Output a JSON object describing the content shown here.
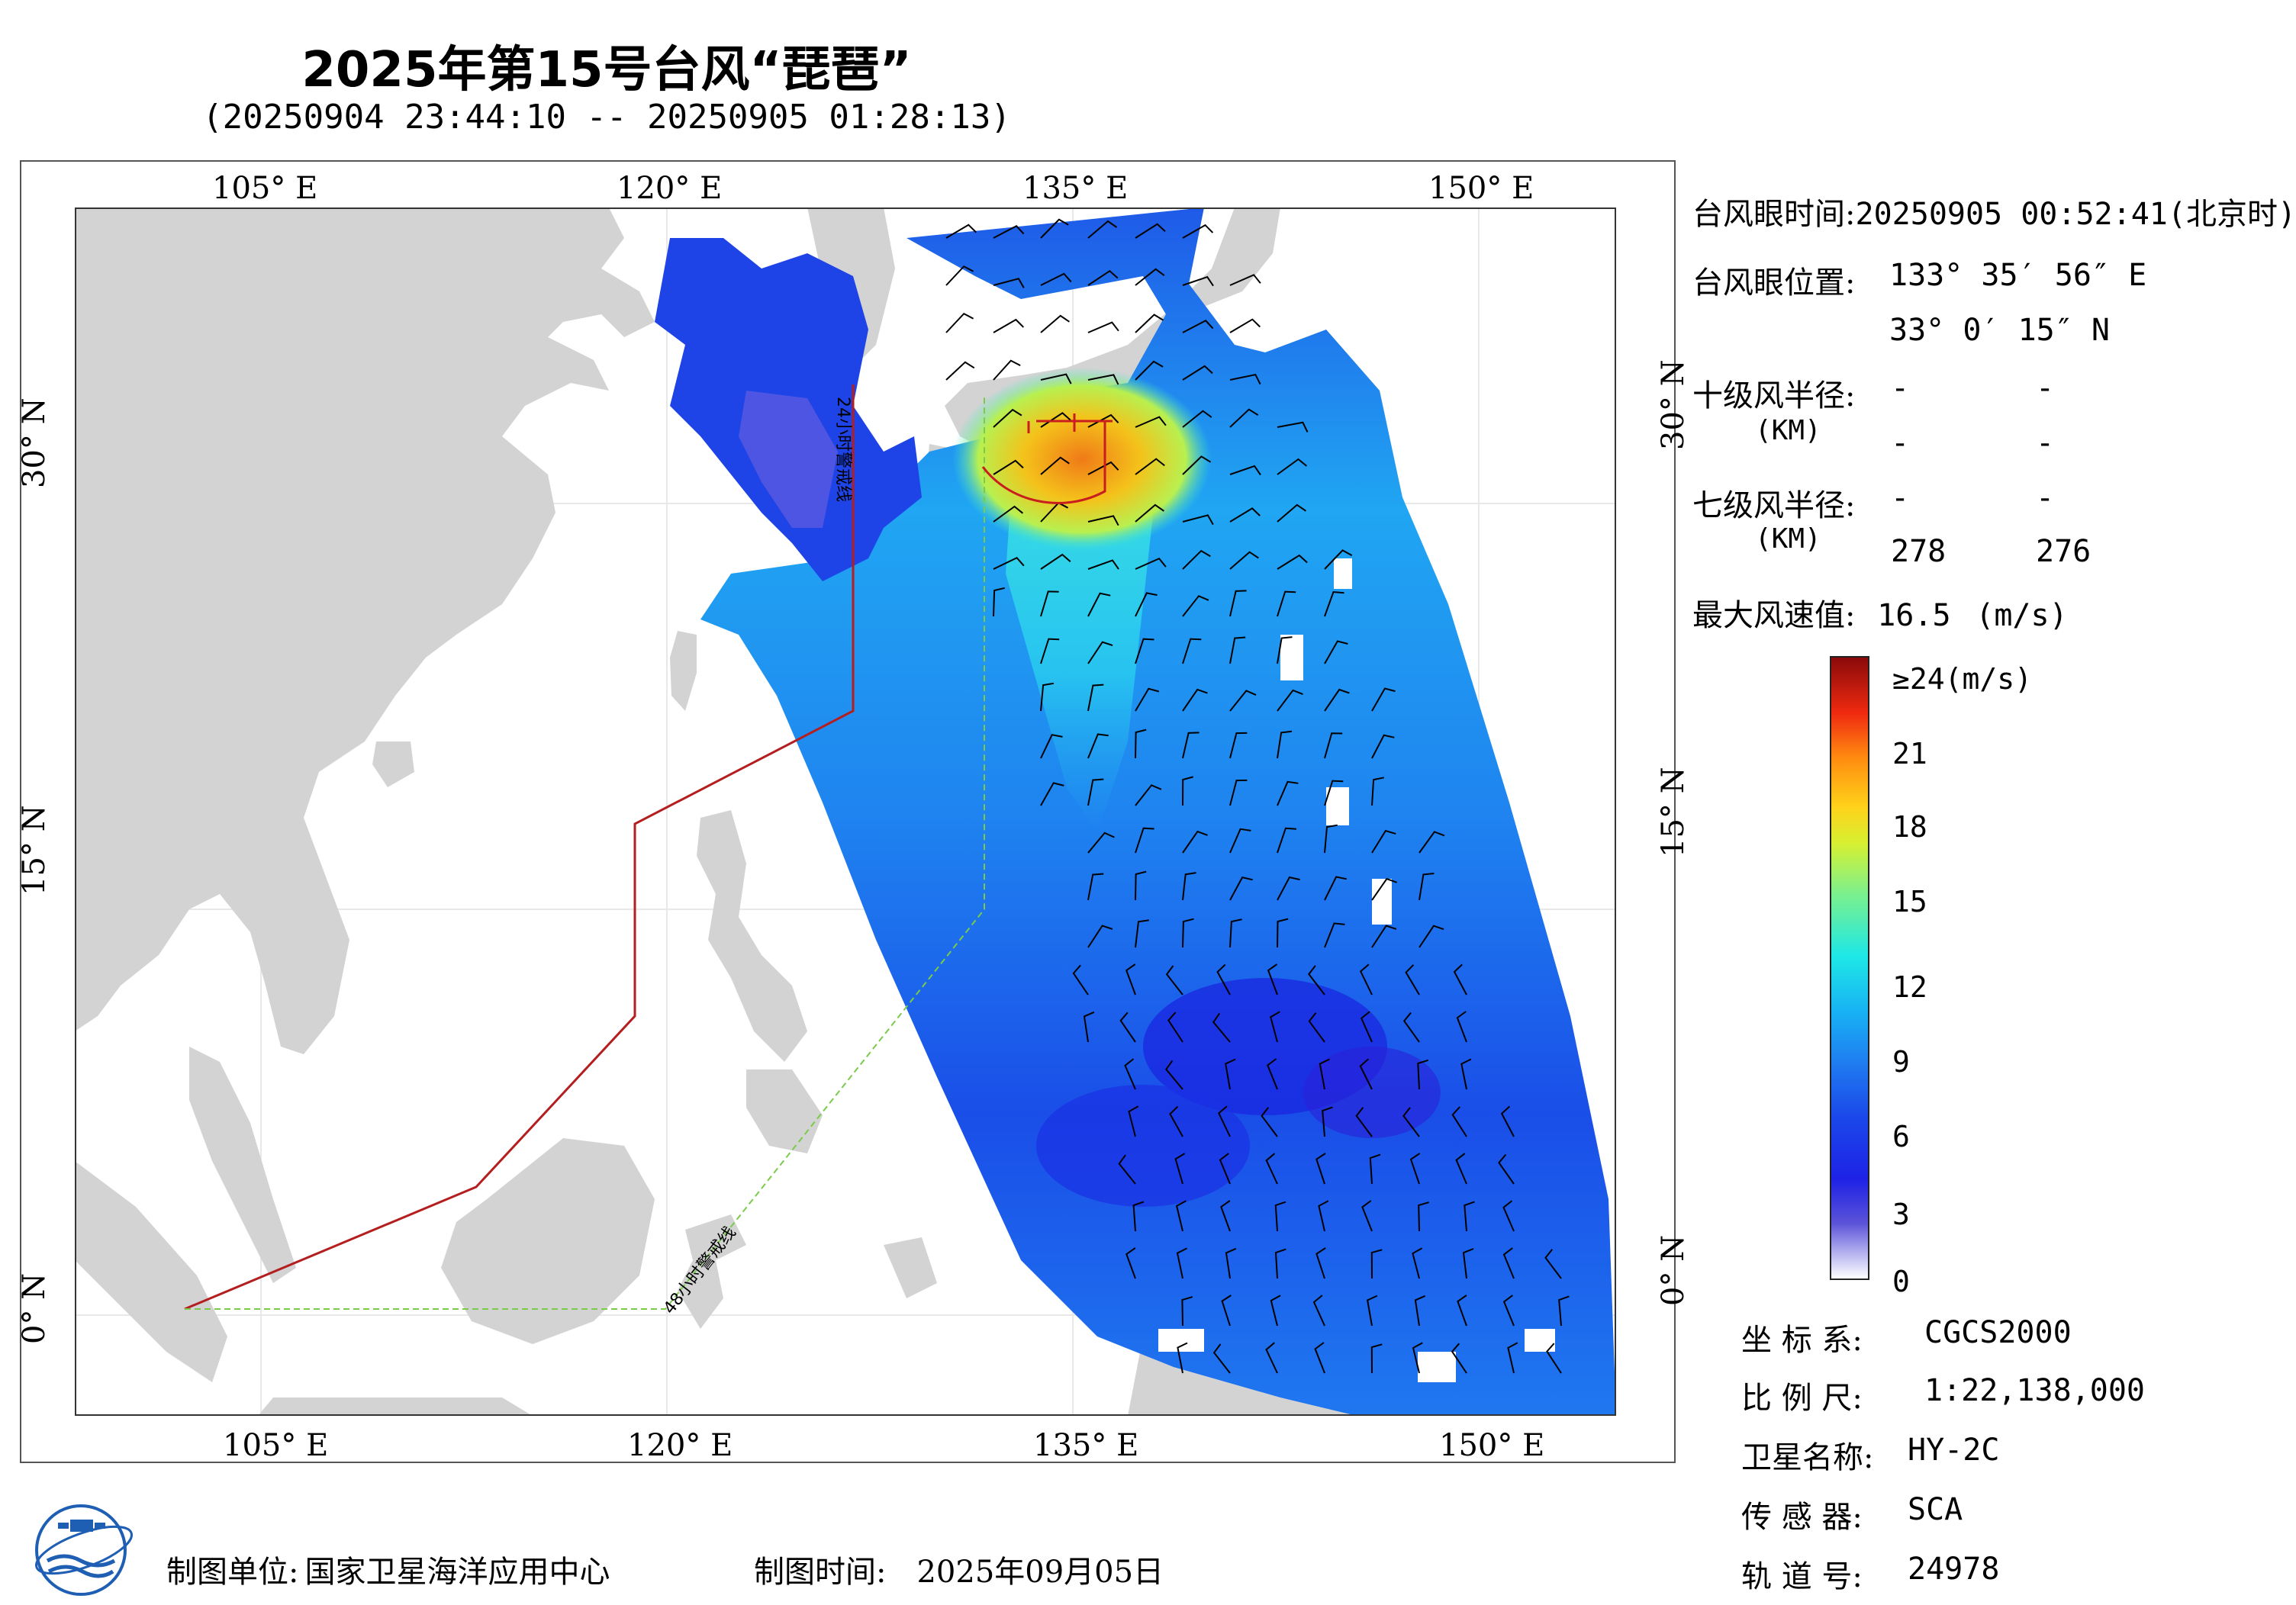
{
  "header": {
    "title": "2025年第15号台风“琵琶”",
    "subtitle": "(20250904 23:44:10 -- 20250905 01:28:13)"
  },
  "map": {
    "lon_labels": [
      "105° E",
      "120° E",
      "135° E",
      "150° E"
    ],
    "lat_labels": [
      "30° N",
      "15° N",
      "0° N"
    ],
    "line_labels": {
      "line_24h": "24小时警戒线",
      "line_48h": "48小时警戒线"
    },
    "colors": {
      "land": "#d3d3d3",
      "sea": "#ffffff",
      "warning_24h": "#b41e1e",
      "warning_48h": "#7acb4a",
      "wind_barb": "#000000"
    }
  },
  "info_panel": {
    "eye_time_label": "台风眼时间:",
    "eye_time_value": "20250905 00:52:41(北京时)",
    "eye_position_label": "台风眼位置:",
    "eye_lon": "133° 35′ 56″ E",
    "eye_lat": "33° 0′ 15″ N",
    "r10_label": "十级风半径:",
    "r10_unit": "(KM)",
    "r10_values": [
      "-",
      "-",
      "-",
      "-"
    ],
    "r7_label": "七级风半径:",
    "r7_unit": "(KM)",
    "r7_values": [
      "-",
      "-",
      "278",
      "276"
    ],
    "max_wind_label": "最大风速值:",
    "max_wind_value": "16.5",
    "max_wind_unit": "(m/s)"
  },
  "colorbar": {
    "ticks": [
      "≥24(m/s)",
      "21",
      "18",
      "15",
      "12",
      "9",
      "6",
      "3",
      "0"
    ]
  },
  "meta": {
    "crs_label": "坐 标 系:",
    "crs_value": "CGCS2000",
    "scale_label": "比 例 尺:",
    "scale_value": "1:22,138,000",
    "satellite_label": "卫星名称:",
    "satellite_value": "HY-2C",
    "sensor_label": "传 感 器:",
    "sensor_value": "SCA",
    "orbit_label": "轨 道 号:",
    "orbit_value": "24978"
  },
  "footer": {
    "unit_label": "制图单位:",
    "unit_value": "国家卫星海洋应用中心",
    "time_label": "制图时间:",
    "time_value": "2025年09月05日"
  }
}
